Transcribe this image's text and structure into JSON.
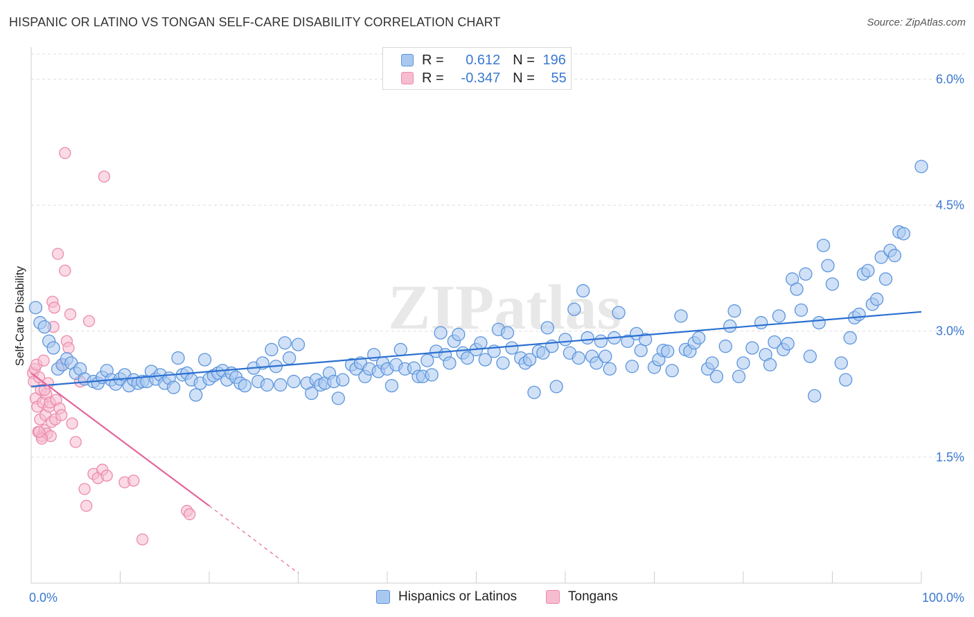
{
  "title": "HISPANIC OR LATINO VS TONGAN SELF-CARE DISABILITY CORRELATION CHART",
  "source": "Source: ZipAtlas.com",
  "watermark": "ZIPatlas",
  "colors": {
    "blue_fill": "#a9c8f0",
    "blue_stroke": "#5b94dc",
    "blue_line": "#2a6fd0",
    "pink_fill": "#f6bcd0",
    "pink_stroke": "#ec8aab",
    "pink_line": "#e4649a",
    "axis_text": "#3a78d0"
  },
  "legend": {
    "rows": [
      {
        "r_label": "R = ",
        "r_value": "0.612",
        "n_label": "N = ",
        "n_value": "196"
      },
      {
        "r_label": "R = ",
        "r_value": "-0.347",
        "n_label": "N = ",
        "n_value": "55"
      }
    ]
  },
  "series_labels": {
    "blue": "Hispanics or Latinos",
    "pink": "Tongans"
  },
  "chart_data": {
    "type": "scatter",
    "title": "HISPANIC OR LATINO VS TONGAN SELF-CARE DISABILITY CORRELATION CHART",
    "xlabel": "",
    "ylabel": "Self-Care Disability",
    "xlim": [
      0,
      100
    ],
    "ylim": [
      0,
      6.3
    ],
    "x_tick_labels": [
      "0.0%",
      "100.0%"
    ],
    "y_ticks": [
      1.5,
      3.0,
      4.5,
      6.0
    ],
    "y_tick_labels": [
      "1.5%",
      "3.0%",
      "4.5%",
      "6.0%"
    ],
    "grid": true,
    "series": [
      {
        "name": "Hispanics or Latinos",
        "r": 0.612,
        "n": 196,
        "trend": {
          "x0": 0,
          "y0": 2.34,
          "x1": 100,
          "y1": 3.23
        },
        "points": [
          [
            0.5,
            3.28
          ],
          [
            1,
            3.1
          ],
          [
            1.5,
            3.05
          ],
          [
            2,
            2.88
          ],
          [
            2.5,
            2.8
          ],
          [
            3,
            2.55
          ],
          [
            3.5,
            2.6
          ],
          [
            4,
            2.67
          ],
          [
            4.5,
            2.62
          ],
          [
            5,
            2.5
          ],
          [
            5.5,
            2.55
          ],
          [
            6,
            2.43
          ],
          [
            7,
            2.4
          ],
          [
            7.5,
            2.38
          ],
          [
            8,
            2.45
          ],
          [
            8.5,
            2.53
          ],
          [
            9,
            2.42
          ],
          [
            9.5,
            2.37
          ],
          [
            10,
            2.43
          ],
          [
            10.5,
            2.48
          ],
          [
            11,
            2.35
          ],
          [
            11.5,
            2.42
          ],
          [
            12,
            2.38
          ],
          [
            12.5,
            2.4
          ],
          [
            13,
            2.4
          ],
          [
            13.5,
            2.52
          ],
          [
            14,
            2.43
          ],
          [
            14.5,
            2.48
          ],
          [
            15,
            2.38
          ],
          [
            15.5,
            2.44
          ],
          [
            16,
            2.33
          ],
          [
            16.5,
            2.68
          ],
          [
            17,
            2.48
          ],
          [
            17.5,
            2.5
          ],
          [
            18,
            2.42
          ],
          [
            18.5,
            2.24
          ],
          [
            19,
            2.38
          ],
          [
            19.5,
            2.66
          ],
          [
            20,
            2.43
          ],
          [
            20.5,
            2.47
          ],
          [
            21,
            2.5
          ],
          [
            21.5,
            2.53
          ],
          [
            22,
            2.42
          ],
          [
            22.5,
            2.5
          ],
          [
            23,
            2.45
          ],
          [
            23.5,
            2.38
          ],
          [
            24,
            2.35
          ],
          [
            25,
            2.56
          ],
          [
            25.5,
            2.4
          ],
          [
            26,
            2.62
          ],
          [
            26.5,
            2.36
          ],
          [
            27,
            2.78
          ],
          [
            27.5,
            2.58
          ],
          [
            28,
            2.36
          ],
          [
            28.5,
            2.86
          ],
          [
            29,
            2.68
          ],
          [
            29.5,
            2.4
          ],
          [
            30,
            2.84
          ],
          [
            31,
            2.38
          ],
          [
            31.5,
            2.26
          ],
          [
            32,
            2.42
          ],
          [
            32.5,
            2.36
          ],
          [
            33,
            2.38
          ],
          [
            33.5,
            2.5
          ],
          [
            34,
            2.4
          ],
          [
            34.5,
            2.2
          ],
          [
            35,
            2.42
          ],
          [
            36,
            2.6
          ],
          [
            36.5,
            2.55
          ],
          [
            37,
            2.62
          ],
          [
            37.5,
            2.46
          ],
          [
            38,
            2.55
          ],
          [
            38.5,
            2.72
          ],
          [
            39,
            2.52
          ],
          [
            39.5,
            2.62
          ],
          [
            40,
            2.55
          ],
          [
            40.5,
            2.35
          ],
          [
            41,
            2.6
          ],
          [
            41.5,
            2.78
          ],
          [
            42,
            2.55
          ],
          [
            43,
            2.56
          ],
          [
            43.5,
            2.46
          ],
          [
            44,
            2.46
          ],
          [
            44.5,
            2.65
          ],
          [
            45,
            2.48
          ],
          [
            45.5,
            2.76
          ],
          [
            46,
            2.98
          ],
          [
            46.5,
            2.72
          ],
          [
            47,
            2.62
          ],
          [
            47.5,
            2.88
          ],
          [
            48,
            2.96
          ],
          [
            48.5,
            2.74
          ],
          [
            49,
            2.68
          ],
          [
            50,
            2.78
          ],
          [
            50.5,
            2.86
          ],
          [
            51,
            2.66
          ],
          [
            52,
            2.76
          ],
          [
            52.5,
            3.02
          ],
          [
            53,
            2.62
          ],
          [
            53.5,
            2.98
          ],
          [
            54,
            2.8
          ],
          [
            55,
            2.68
          ],
          [
            55.5,
            2.62
          ],
          [
            56,
            2.66
          ],
          [
            56.5,
            2.27
          ],
          [
            57,
            2.76
          ],
          [
            57.5,
            2.74
          ],
          [
            58,
            3.04
          ],
          [
            58.5,
            2.82
          ],
          [
            59,
            2.34
          ],
          [
            60,
            2.9
          ],
          [
            60.5,
            2.74
          ],
          [
            61,
            3.26
          ],
          [
            61.5,
            2.68
          ],
          [
            62,
            3.48
          ],
          [
            62.5,
            2.92
          ],
          [
            63,
            2.7
          ],
          [
            63.5,
            2.62
          ],
          [
            64,
            2.88
          ],
          [
            64.5,
            2.7
          ],
          [
            65,
            2.55
          ],
          [
            65.5,
            2.92
          ],
          [
            66,
            3.22
          ],
          [
            67,
            2.88
          ],
          [
            67.5,
            2.58
          ],
          [
            68,
            2.97
          ],
          [
            68.5,
            2.77
          ],
          [
            69,
            2.9
          ],
          [
            70,
            2.57
          ],
          [
            70.5,
            2.66
          ],
          [
            71,
            2.77
          ],
          [
            71.5,
            2.76
          ],
          [
            72,
            2.53
          ],
          [
            73,
            3.18
          ],
          [
            73.5,
            2.78
          ],
          [
            74,
            2.76
          ],
          [
            74.5,
            2.86
          ],
          [
            75,
            2.92
          ],
          [
            76,
            2.55
          ],
          [
            76.5,
            2.62
          ],
          [
            77,
            2.46
          ],
          [
            78,
            2.82
          ],
          [
            78.5,
            3.06
          ],
          [
            79,
            3.24
          ],
          [
            79.5,
            2.46
          ],
          [
            80,
            2.62
          ],
          [
            81,
            2.8
          ],
          [
            82,
            3.1
          ],
          [
            82.5,
            2.72
          ],
          [
            83,
            2.6
          ],
          [
            83.5,
            2.87
          ],
          [
            84,
            3.18
          ],
          [
            84.5,
            2.78
          ],
          [
            85,
            2.85
          ],
          [
            85.5,
            3.62
          ],
          [
            86,
            3.5
          ],
          [
            86.5,
            3.25
          ],
          [
            87,
            3.68
          ],
          [
            87.5,
            2.7
          ],
          [
            88,
            2.23
          ],
          [
            88.5,
            3.1
          ],
          [
            89,
            4.02
          ],
          [
            89.5,
            3.78
          ],
          [
            90,
            3.56
          ],
          [
            91,
            2.62
          ],
          [
            91.5,
            2.42
          ],
          [
            92,
            2.92
          ],
          [
            92.5,
            3.16
          ],
          [
            93,
            3.2
          ],
          [
            93.5,
            3.68
          ],
          [
            94,
            3.72
          ],
          [
            94.5,
            3.32
          ],
          [
            95,
            3.38
          ],
          [
            95.5,
            3.88
          ],
          [
            96,
            3.62
          ],
          [
            96.5,
            3.96
          ],
          [
            97,
            3.9
          ],
          [
            97.5,
            4.18
          ],
          [
            98,
            4.16
          ],
          [
            100,
            4.96
          ]
        ]
      },
      {
        "name": "Tongans",
        "r": -0.347,
        "n": 55,
        "trend": {
          "x0": 0,
          "y0": 2.5,
          "x1": 20,
          "y1": 0.92
        },
        "trend_dashed_to": {
          "x": 30,
          "y": 0.12
        },
        "points": [
          [
            0.2,
            2.5
          ],
          [
            0.3,
            2.4
          ],
          [
            0.4,
            2.55
          ],
          [
            0.5,
            2.2
          ],
          [
            0.6,
            2.6
          ],
          [
            0.7,
            2.1
          ],
          [
            0.8,
            1.8
          ],
          [
            0.9,
            2.45
          ],
          [
            1,
            1.95
          ],
          [
            1.1,
            2.3
          ],
          [
            1.2,
            1.75
          ],
          [
            1.3,
            2.15
          ],
          [
            1.4,
            2.65
          ],
          [
            1.5,
            1.82
          ],
          [
            1.6,
            2.0
          ],
          [
            1.7,
            2.25
          ],
          [
            1.8,
            1.78
          ],
          [
            1.9,
            2.38
          ],
          [
            2,
            2.1
          ],
          [
            2.1,
            2.15
          ],
          [
            2.2,
            1.75
          ],
          [
            2.3,
            1.92
          ],
          [
            2.4,
            3.35
          ],
          [
            2.5,
            3.05
          ],
          [
            2.6,
            3.28
          ],
          [
            2.7,
            1.95
          ],
          [
            2.8,
            2.18
          ],
          [
            3,
            3.92
          ],
          [
            3.2,
            2.08
          ],
          [
            3.4,
            2.0
          ],
          [
            3.6,
            2.6
          ],
          [
            3.8,
            3.72
          ],
          [
            4,
            2.88
          ],
          [
            4.2,
            2.8
          ],
          [
            4.4,
            3.2
          ],
          [
            4.6,
            1.9
          ],
          [
            5,
            1.68
          ],
          [
            5.5,
            2.4
          ],
          [
            6,
            1.12
          ],
          [
            6.2,
            0.92
          ],
          [
            6.5,
            3.12
          ],
          [
            7,
            1.3
          ],
          [
            7.5,
            1.25
          ],
          [
            8,
            1.35
          ],
          [
            8.2,
            4.84
          ],
          [
            8.5,
            1.28
          ],
          [
            10.5,
            1.2
          ],
          [
            11.5,
            1.22
          ],
          [
            12.5,
            0.52
          ],
          [
            17.5,
            0.86
          ],
          [
            17.8,
            0.82
          ],
          [
            1.2,
            1.72
          ],
          [
            1.5,
            2.3
          ],
          [
            0.9,
            1.8
          ],
          [
            3.8,
            5.12
          ]
        ]
      }
    ]
  }
}
